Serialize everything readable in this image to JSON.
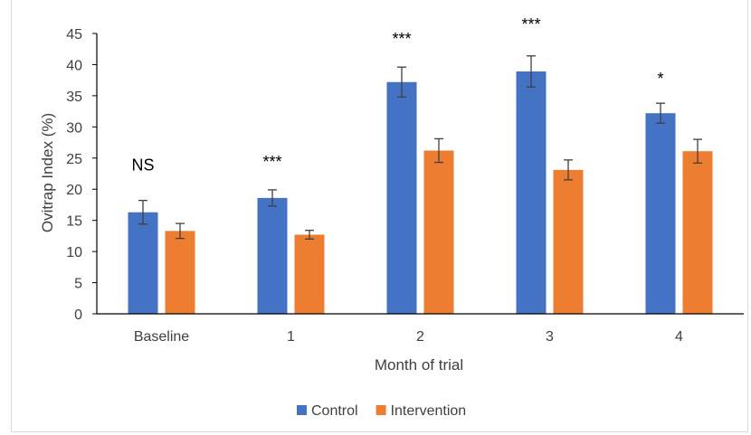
{
  "chart_data": {
    "type": "bar",
    "title": "",
    "xlabel": "Month of trial",
    "ylabel": "Ovitrap Index (%)",
    "categories": [
      "Baseline",
      "1",
      "2",
      "3",
      "4"
    ],
    "ylim": [
      0,
      45
    ],
    "yticks": [
      "0",
      "5",
      "10",
      "15",
      "20",
      "25",
      "30",
      "35",
      "40",
      "45"
    ],
    "grid": false,
    "legend_position": "bottom",
    "series": [
      {
        "name": "Control",
        "color": "#4472C4",
        "values": [
          16.3,
          18.6,
          37.2,
          38.9,
          32.2
        ],
        "errors": [
          1.9,
          1.3,
          2.4,
          2.5,
          1.6
        ]
      },
      {
        "name": "Intervention",
        "color": "#ED7D31",
        "values": [
          13.3,
          12.7,
          26.2,
          23.1,
          26.1
        ],
        "errors": [
          1.2,
          0.7,
          1.9,
          1.6,
          1.9
        ]
      }
    ],
    "annotations": [
      "NS",
      "***",
      "***",
      "***",
      "*"
    ]
  }
}
